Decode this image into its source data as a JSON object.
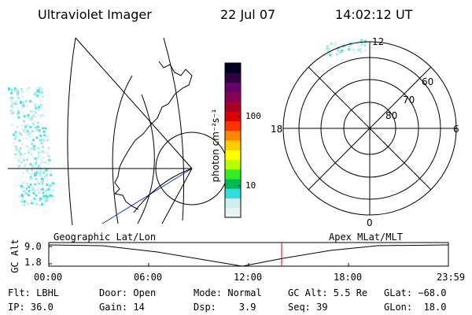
{
  "header": {
    "instrument": "Ultraviolet Imager",
    "date": "22 Jul 07",
    "time": "14:02:12 UT"
  },
  "colorbar": {
    "label": "photon cm⁻²s⁻¹",
    "tick_labels": [
      "100",
      "10"
    ],
    "colors": [
      "#e8f4f4",
      "#cfeeee",
      "#33dddd",
      "#00bb55",
      "#33ee22",
      "#b8ff00",
      "#ffff00",
      "#ffcc00",
      "#ff8800",
      "#ff3300",
      "#dd0000",
      "#aa0022",
      "#880055",
      "#660066",
      "#330044",
      "#000022"
    ]
  },
  "polar": {
    "mlt_labels": {
      "top": "12",
      "left": "18",
      "right": "6",
      "bottom": "0"
    },
    "lat_labels": [
      "60",
      "70",
      "80"
    ]
  },
  "timeline": {
    "left_title": "Geographic Lat/Lon",
    "right_title": "Apex MLat/MLT",
    "y_axis_label": "GC Alt",
    "y_ticks": [
      "9.0",
      "1.8"
    ],
    "x_ticks": [
      "00:00",
      "06:00",
      "12:00",
      "18:00",
      "23:59"
    ],
    "marker_color": "#dd0000"
  },
  "status": {
    "filter": "Flt: LBHL",
    "ip": "IP: 36.0",
    "door": "Door: Open",
    "gain": "Gain: 14",
    "mode": "Mode: Normal",
    "dsp": "Dsp:    3.9",
    "gc_alt": "GC Alt: 5.5 Re",
    "seq": "Seq: 39",
    "glat": "GLat: −68.0",
    "glon": "GLon:  18.0"
  }
}
